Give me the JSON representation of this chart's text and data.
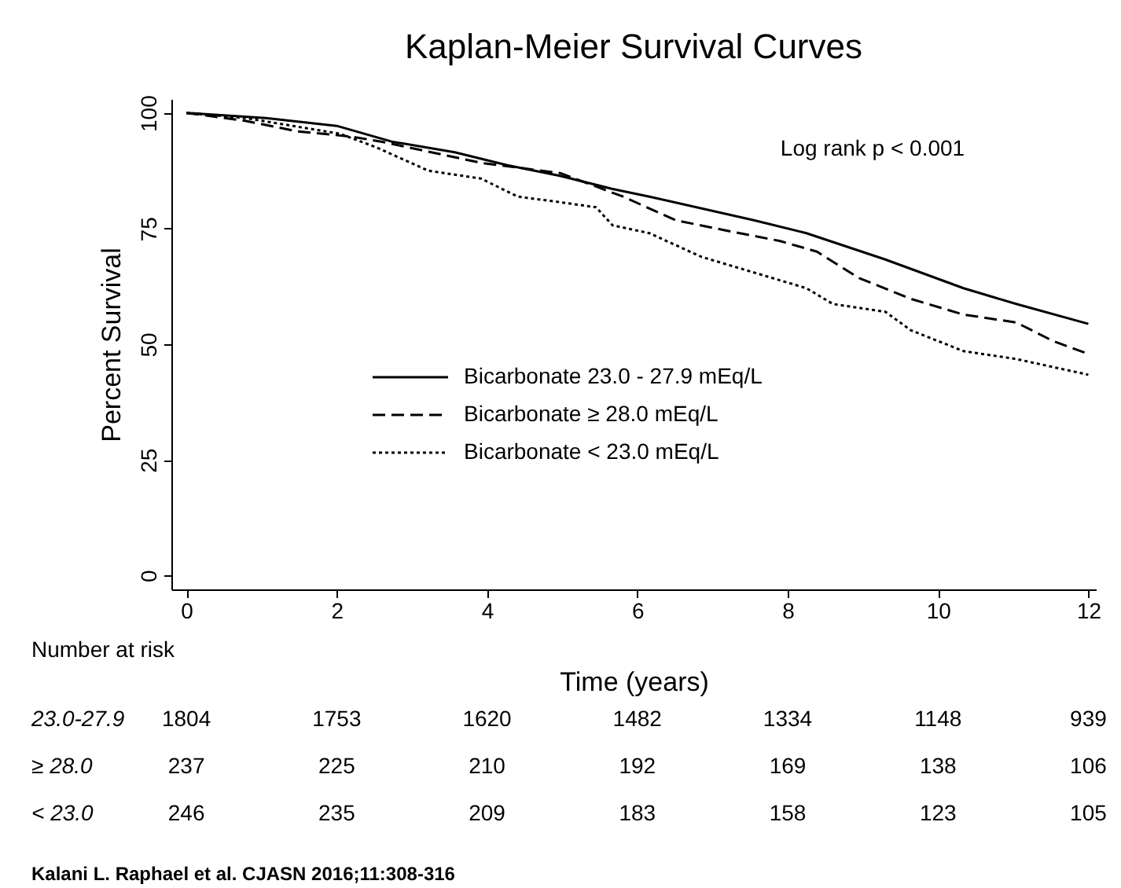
{
  "chart_data": {
    "type": "line",
    "title": "Kaplan-Meier Survival Curves",
    "xlabel": "Time (years)",
    "ylabel": "Percent Survival",
    "xlim": [
      -0.2,
      12.1
    ],
    "xticks": [
      0,
      2,
      4,
      6,
      8,
      10,
      12
    ],
    "ylim": [
      -3,
      103
    ],
    "yticks": [
      0,
      25,
      50,
      75,
      100
    ],
    "grid": false,
    "legend": "bottom left",
    "series": [
      {
        "name": "Bicarbonate 23.0 - 27.9 mEq/L",
        "color": "#000000",
        "line_style": "solid",
        "x": [
          0,
          1.06,
          2,
          2.73,
          3.57,
          4.27,
          4.97,
          5.66,
          6.16,
          7.55,
          8.25,
          9.3,
          10.34,
          11.04,
          12
        ],
        "values": [
          100,
          98.9,
          97.2,
          93.8,
          91.5,
          88.7,
          86.4,
          83.6,
          81.9,
          76.8,
          74.0,
          68.3,
          62.1,
          58.7,
          54.4
        ]
      },
      {
        "name": "Bicarbonate ≥ 28.0 mEq/L",
        "color": "#000000",
        "line_style": "dashed",
        "x": [
          0,
          0.78,
          1.48,
          2.18,
          2.59,
          3.92,
          4.97,
          5.81,
          6.51,
          7.2,
          7.9,
          8.39,
          8.95,
          9.64,
          10.34,
          11.04,
          11.53,
          12
        ],
        "values": [
          100,
          98.3,
          96.0,
          94.9,
          93.8,
          89.2,
          87.0,
          81.9,
          76.8,
          74.5,
          72.3,
          70.0,
          64.3,
          59.8,
          56.4,
          54.7,
          50.7,
          47.9
        ]
      },
      {
        "name": "Bicarbonate < 23.0 mEq/L",
        "color": "#000000",
        "line_style": "dotted",
        "x": [
          0,
          0.78,
          2.04,
          2.52,
          3.22,
          3.92,
          4.41,
          4.97,
          5.45,
          5.67,
          6.16,
          6.85,
          7.55,
          8.25,
          8.6,
          9.3,
          9.64,
          10.34,
          11.04,
          12
        ],
        "values": [
          100,
          98.9,
          95.5,
          92.6,
          87.5,
          85.8,
          81.9,
          80.7,
          79.6,
          75.7,
          74.0,
          68.9,
          65.5,
          62.1,
          58.7,
          57.0,
          53.0,
          48.5,
          46.8,
          43.4
        ]
      }
    ],
    "annotations": [
      "Log rank p < 0.001",
      "Number at risk",
      "23.0-27.9",
      "1804",
      "1753",
      "1620",
      "1482",
      "1334",
      "1148",
      "939",
      "≥ 28.0",
      "237",
      "225",
      "210",
      "192",
      "169",
      "138",
      "106",
      "< 23.0",
      "246",
      "235",
      "209",
      "183",
      "158",
      "123",
      "105",
      "Kalani L. Raphael et al. CJASN 2016;11:308-316"
    ]
  }
}
